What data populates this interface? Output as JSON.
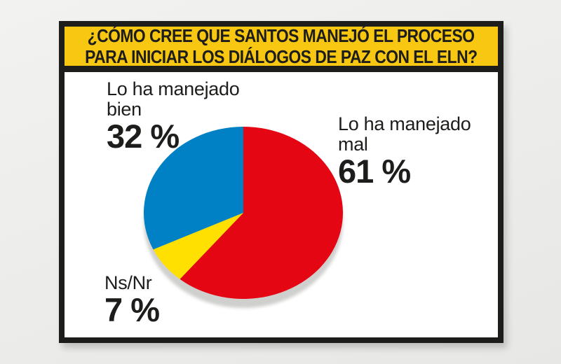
{
  "page": {
    "paper_color": "#ECECEA"
  },
  "header": {
    "line1": "¿CÓMO CREE QUE SANTOS MANEJÓ EL PROCESO",
    "line2": "PARA INICIAR LOS DIÁLOGOS DE PAZ CON EL ELN?",
    "bg_color": "#F8C711",
    "text_color": "#1D1D1B",
    "border_color": "#1D1D1B"
  },
  "chart_data": {
    "type": "pie",
    "title": "¿Cómo cree que Santos manejó el proceso para iniciar los diálogos de paz con el ELN?",
    "categories": [
      "Lo ha manejado mal",
      "Ns/Nr",
      "Lo ha manejado bien"
    ],
    "values": [
      61,
      7,
      32
    ],
    "colors": [
      "#E50613",
      "#FFE000",
      "#0080C5"
    ],
    "unit": "%",
    "start_angle_deg": 0,
    "direction": "clockwise",
    "shadow_color": "#CFCFCD",
    "legend_position": "callout-labels"
  },
  "labels": {
    "bien": {
      "line1": "Lo ha manejado",
      "line2": "bien",
      "pct": "32 %"
    },
    "mal": {
      "line1": "Lo ha manejado",
      "line2": "mal",
      "pct": "61 %"
    },
    "ns": {
      "line1": "Ns/Nr",
      "pct": "7 %"
    }
  }
}
